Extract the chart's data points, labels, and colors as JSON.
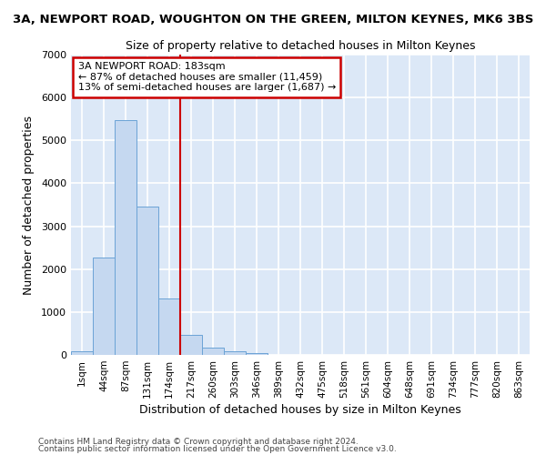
{
  "title": "3A, NEWPORT ROAD, WOUGHTON ON THE GREEN, MILTON KEYNES, MK6 3BS",
  "subtitle": "Size of property relative to detached houses in Milton Keynes",
  "xlabel": "Distribution of detached houses by size in Milton Keynes",
  "ylabel": "Number of detached properties",
  "footnote1": "Contains HM Land Registry data © Crown copyright and database right 2024.",
  "footnote2": "Contains public sector information licensed under the Open Government Licence v3.0.",
  "bar_labels": [
    "1sqm",
    "44sqm",
    "87sqm",
    "131sqm",
    "174sqm",
    "217sqm",
    "260sqm",
    "303sqm",
    "346sqm",
    "389sqm",
    "432sqm",
    "475sqm",
    "518sqm",
    "561sqm",
    "604sqm",
    "648sqm",
    "691sqm",
    "734sqm",
    "777sqm",
    "820sqm",
    "863sqm"
  ],
  "bar_values": [
    80,
    2280,
    5470,
    3450,
    1310,
    470,
    160,
    90,
    50,
    0,
    0,
    0,
    0,
    0,
    0,
    0,
    0,
    0,
    0,
    0,
    0
  ],
  "bar_color": "#c5d8f0",
  "bar_edge_color": "#6ba3d6",
  "fig_background_color": "#ffffff",
  "plot_background_color": "#dce8f7",
  "grid_color": "#ffffff",
  "ylim": [
    0,
    7000
  ],
  "redline_x": 4.5,
  "annotation_title": "3A NEWPORT ROAD: 183sqm",
  "annotation_line1": "← 87% of detached houses are smaller (11,459)",
  "annotation_line2": "13% of semi-detached houses are larger (1,687) →",
  "annotation_box_color": "#ffffff",
  "annotation_border_color": "#cc0000",
  "redline_color": "#cc0000"
}
